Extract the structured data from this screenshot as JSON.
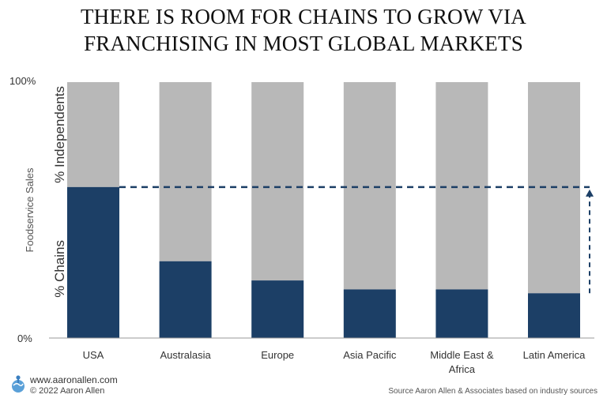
{
  "title_lines": [
    "THERE IS ROOM FOR CHAINS TO GROW VIA",
    "FRANCHISING IN MOST GLOBAL MARKETS"
  ],
  "colors": {
    "chains": "#1c3f66",
    "independents": "#b8b8b8",
    "arrow": "#1c3f66",
    "axis": "#999999"
  },
  "chart_data": {
    "type": "bar",
    "stacked": true,
    "title": "THERE IS ROOM FOR CHAINS TO GROW VIA FRANCHISING IN MOST GLOBAL MARKETS",
    "ylabel": "Foodservice Sales",
    "ylim": [
      0,
      100
    ],
    "y_ticks": [
      "0%",
      "100%"
    ],
    "categories": [
      "USA",
      "Australasia",
      "Europe",
      "Asia Pacific",
      "Middle East & Africa",
      "Latin America"
    ],
    "category_lines": [
      [
        "USA"
      ],
      [
        "Australasia"
      ],
      [
        "Europe"
      ],
      [
        "Asia Pacific"
      ],
      [
        "Middle East &",
        "Africa"
      ],
      [
        "Latin America"
      ]
    ],
    "series": [
      {
        "name": "% Chains",
        "values": [
          59,
          30,
          22.5,
          19,
          19,
          17.5
        ]
      },
      {
        "name": "% Independents",
        "values": [
          41,
          70,
          77.5,
          81,
          81,
          82.5
        ]
      }
    ],
    "reference_line_value": 59,
    "grid": false
  },
  "footer": {
    "website": "www.aaronallen.com",
    "copyright": "© 2022 Aaron Allen",
    "source": "Source Aaron Allen & Associates based on industry sources"
  }
}
